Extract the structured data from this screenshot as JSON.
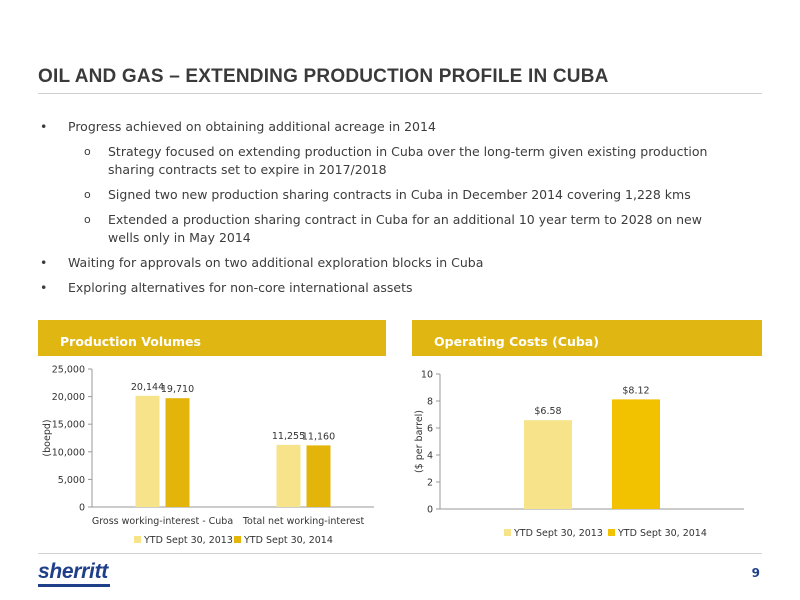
{
  "page": {
    "title": "OIL AND GAS – EXTENDING PRODUCTION PROFILE IN CUBA",
    "page_number": "9",
    "logo_text": "sherritt",
    "brand_color": "#1f3f8a",
    "accent_color": "#e0b612"
  },
  "bullets": [
    {
      "level": 1,
      "marker": "•",
      "text": "Progress achieved on obtaining additional acreage in 2014"
    },
    {
      "level": 2,
      "marker": "o",
      "text": "Strategy focused on extending production in Cuba over the long-term given existing production sharing contracts set to expire in 2017/2018"
    },
    {
      "level": 2,
      "marker": "o",
      "text": "Signed two new production sharing contracts in Cuba in December 2014 covering 1,228 kms"
    },
    {
      "level": 2,
      "marker": "o",
      "text": "Extended a production sharing contract in Cuba for an additional 10 year term to 2028 on new wells only in May 2014"
    },
    {
      "level": 1,
      "marker": "•",
      "text": "Waiting for approvals on two additional exploration blocks in Cuba"
    },
    {
      "level": 1,
      "marker": "•",
      "text": "Exploring alternatives for non-core international assets"
    }
  ],
  "panels": {
    "left_title": "Production Volumes",
    "right_title": "Operating Costs (Cuba)"
  },
  "chart_data": [
    {
      "type": "bar",
      "title": "Production Volumes",
      "categories": [
        "Gross working-interest - Cuba",
        "Total net working-interest"
      ],
      "series": [
        {
          "name": "YTD Sept 30, 2013",
          "values": [
            20144,
            11255
          ],
          "labels": [
            "20,144",
            "11,255"
          ],
          "color": "#f7e48a"
        },
        {
          "name": "YTD Sept 30, 2014",
          "values": [
            19710,
            11160
          ],
          "labels": [
            "19,710",
            "11,160"
          ],
          "color": "#e3b50b"
        }
      ],
      "xlabel": "",
      "ylabel": "(boepd)",
      "ylim": [
        0,
        25000
      ],
      "yticks": [
        0,
        5000,
        10000,
        15000,
        20000,
        25000
      ],
      "ytick_labels": [
        "0",
        "5,000",
        "10,000",
        "15,000",
        "20,000",
        "25,000"
      ],
      "grid": false,
      "legend": "bottom"
    },
    {
      "type": "bar",
      "title": "Operating Costs (Cuba)",
      "categories": [
        ""
      ],
      "series": [
        {
          "name": "YTD Sept 30, 2013",
          "values": [
            6.58
          ],
          "labels": [
            "$6.58"
          ],
          "color": "#f7e48a"
        },
        {
          "name": "YTD Sept 30, 2014",
          "values": [
            8.12
          ],
          "labels": [
            "$8.12"
          ],
          "color": "#f2c200"
        }
      ],
      "xlabel": "",
      "ylabel": "($ per barrel)",
      "ylim": [
        0,
        10
      ],
      "yticks": [
        0,
        2,
        4,
        6,
        8,
        10
      ],
      "ytick_labels": [
        "0",
        "2",
        "4",
        "6",
        "8",
        "10"
      ],
      "grid": false,
      "legend": "bottom"
    }
  ]
}
